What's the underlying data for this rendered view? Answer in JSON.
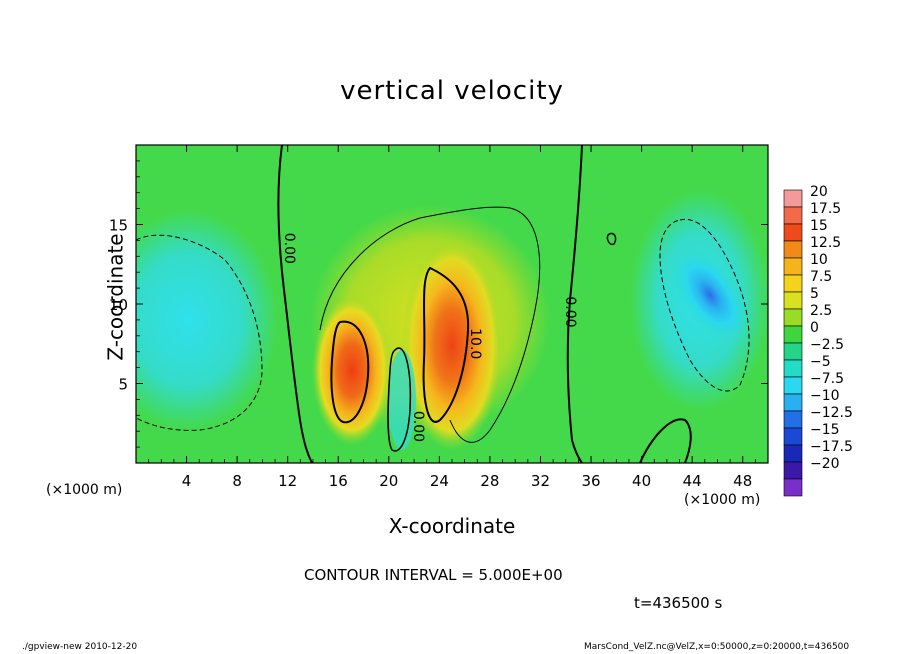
{
  "title": "vertical velocity",
  "xlabel": "X-coordinate",
  "ylabel": "Z-coordinate",
  "x_unit_left": "(×1000 m)",
  "x_unit_right": "(×1000 m)",
  "contour_interval": "CONTOUR INTERVAL = 5.000E+00",
  "time_label": "t=436500 s",
  "footer_left": "./gpview-new   2010-12-20",
  "footer_right": "MarsCond_VelZ.nc@VelZ,x=0:50000,z=0:20000,t=436500",
  "colors": {
    "background_field": "#44d94a",
    "contour_line": "#000000"
  },
  "chart_data": {
    "type": "heatmap",
    "title": "vertical velocity",
    "xlabel": "X-coordinate",
    "ylabel": "Z-coordinate",
    "xlim": [
      0,
      50
    ],
    "ylim": [
      0,
      20
    ],
    "x_ticks": [
      4,
      8,
      12,
      16,
      20,
      24,
      28,
      32,
      36,
      40,
      44,
      48
    ],
    "y_ticks": [
      5,
      10,
      15
    ],
    "grid": false,
    "legend": "right",
    "colorbar": {
      "levels": [
        "20",
        "17.5",
        "15",
        "12.5",
        "10",
        "7.5",
        "5",
        "2.5",
        "0",
        "−2.5",
        "−5",
        "−7.5",
        "−10",
        "−12.5",
        "−15",
        "−17.5",
        "−20"
      ],
      "colors": [
        "#f59a9a",
        "#f26a4a",
        "#ef4a1a",
        "#f28a18",
        "#f5b41c",
        "#f5d21c",
        "#d8e020",
        "#98dc28",
        "#3ed63e",
        "#24d488",
        "#22dcc8",
        "#2ad8f0",
        "#2ab0f0",
        "#2270e8",
        "#1c48d8",
        "#1a28b8",
        "#3a18a8",
        "#7a30c8"
      ]
    },
    "features": [
      {
        "type": "updraft",
        "x": 17.5,
        "z": 6,
        "peak": 17.5
      },
      {
        "type": "updraft",
        "x": 25,
        "z": 7,
        "peak": 15
      },
      {
        "type": "downdraft",
        "x": 4,
        "z": 8,
        "peak": -7.5
      },
      {
        "type": "downdraft",
        "x": 46,
        "z": 10,
        "peak": -10
      }
    ],
    "contour_labels": [
      {
        "text": "0.00",
        "x": 11.8,
        "z": 13.5
      },
      {
        "text": "10.0",
        "x": 26.5,
        "z": 7.5
      },
      {
        "text": "0.00",
        "x": 34,
        "z": 9.5
      },
      {
        "text": "0.00",
        "x": 22,
        "z": 2.3
      }
    ]
  }
}
